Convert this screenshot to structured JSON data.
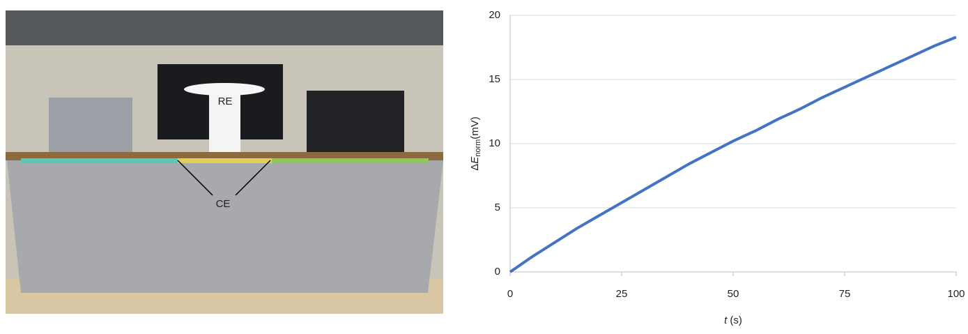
{
  "photo": {
    "labels": [
      "RE",
      "CE"
    ]
  },
  "chart_data": {
    "type": "line",
    "x_label": {
      "symbol": "t",
      "unit": "(s)"
    },
    "y_label": {
      "prefix": "Δ",
      "symbol": "E",
      "subscript": "norm",
      "unit": "(mV)"
    },
    "x": [
      0,
      5,
      10,
      15,
      20,
      25,
      30,
      35,
      40,
      45,
      50,
      55,
      60,
      65,
      70,
      75,
      80,
      85,
      90,
      95,
      100
    ],
    "series": [
      {
        "color": "#4472c4",
        "values": [
          0,
          1.2,
          2.3,
          3.4,
          4.4,
          5.4,
          6.4,
          7.4,
          8.4,
          9.3,
          10.2,
          11.0,
          11.9,
          12.7,
          13.6,
          14.4,
          15.2,
          16.0,
          16.8,
          17.6,
          18.3
        ]
      }
    ],
    "xlim": [
      0,
      100
    ],
    "xticks": [
      0,
      25,
      50,
      75,
      100
    ],
    "ylim": [
      0,
      20
    ],
    "yticks": [
      0,
      5,
      10,
      15,
      20
    ],
    "grid": true
  }
}
